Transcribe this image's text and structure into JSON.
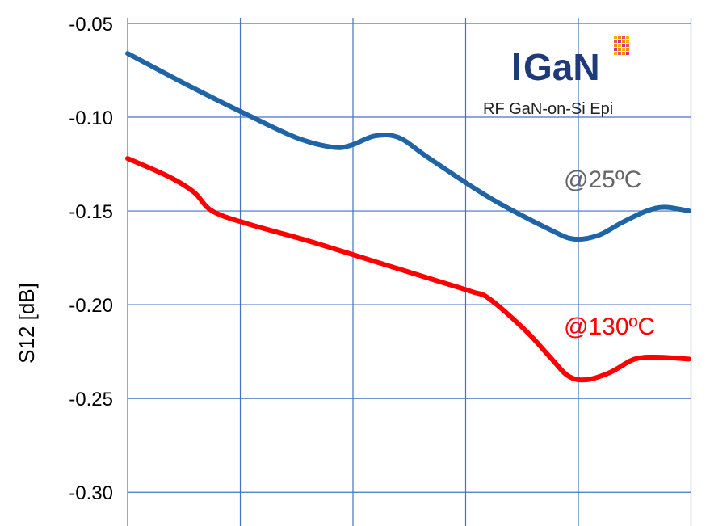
{
  "chart_data": {
    "type": "line",
    "title": "",
    "xlabel": "",
    "ylabel": "S12 [dB]",
    "ylim": [
      -0.318,
      -0.047
    ],
    "y_ticks": [
      -0.05,
      -0.1,
      -0.15,
      -0.2,
      -0.25,
      -0.3
    ],
    "y_tick_labels": [
      "-0.05",
      "-0.10",
      "-0.15",
      "-0.20",
      "-0.25",
      "-0.30"
    ],
    "x_grid_count": 6,
    "grid": true,
    "series": [
      {
        "name": "@25ºC",
        "color": "#2064a8",
        "label_color": "#666666",
        "values": [
          [
            0.0,
            -0.066
          ],
          [
            0.1,
            -0.083
          ],
          [
            0.2,
            -0.099
          ],
          [
            0.28,
            -0.111
          ],
          [
            0.34,
            -0.116
          ],
          [
            0.37,
            -0.115
          ],
          [
            0.41,
            -0.11
          ],
          [
            0.45,
            -0.111
          ],
          [
            0.5,
            -0.122
          ],
          [
            0.6,
            -0.143
          ],
          [
            0.7,
            -0.16
          ],
          [
            0.74,
            -0.165
          ],
          [
            0.78,
            -0.163
          ],
          [
            0.82,
            -0.156
          ],
          [
            0.86,
            -0.15
          ],
          [
            0.89,
            -0.148
          ],
          [
            0.93,
            -0.15
          ]
        ]
      },
      {
        "name": "@130ºC",
        "color": "#ff0000",
        "label_color": "#ff0000",
        "values": [
          [
            0.0,
            -0.122
          ],
          [
            0.07,
            -0.132
          ],
          [
            0.11,
            -0.14
          ],
          [
            0.14,
            -0.15
          ],
          [
            0.2,
            -0.157
          ],
          [
            0.3,
            -0.166
          ],
          [
            0.4,
            -0.176
          ],
          [
            0.5,
            -0.186
          ],
          [
            0.57,
            -0.193
          ],
          [
            0.6,
            -0.197
          ],
          [
            0.66,
            -0.214
          ],
          [
            0.7,
            -0.228
          ],
          [
            0.73,
            -0.238
          ],
          [
            0.76,
            -0.24
          ],
          [
            0.8,
            -0.236
          ],
          [
            0.84,
            -0.229
          ],
          [
            0.88,
            -0.228
          ],
          [
            0.93,
            -0.229
          ]
        ]
      }
    ],
    "annotations": {
      "logo_text": "GaN",
      "logo_subtitle": "RF GaN-on-Si Epi"
    }
  }
}
